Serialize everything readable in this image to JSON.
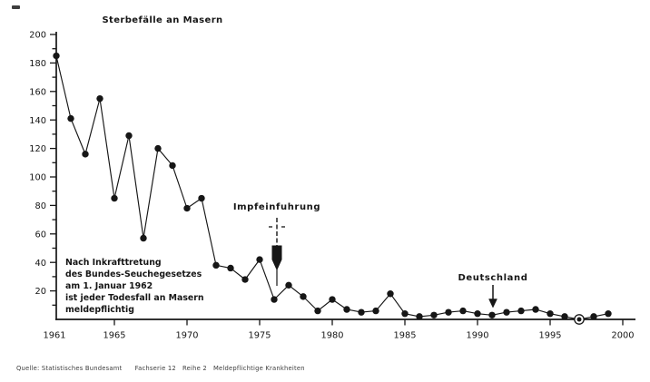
{
  "page": {
    "background": "#ffffff",
    "ink_color": "#161616"
  },
  "chart_data": {
    "type": "line",
    "title": "Sterbefälle an Masern",
    "xlabel": "",
    "ylabel": "",
    "xlim": [
      1961,
      2000
    ],
    "ylim": [
      0,
      200
    ],
    "grid": false,
    "legend": null,
    "marker": "filled-circle",
    "line_color": "#161616",
    "y_major_ticks": [
      20,
      40,
      60,
      80,
      100,
      120,
      140,
      160,
      180,
      200
    ],
    "y_minor_step": 10,
    "x_label_ticks": [
      1961,
      1965,
      1970,
      1975,
      1980,
      1985,
      1990,
      1995,
      2000
    ],
    "x": [
      1961,
      1962,
      1963,
      1964,
      1965,
      1966,
      1967,
      1968,
      1969,
      1970,
      1971,
      1972,
      1973,
      1974,
      1975,
      1976,
      1977,
      1978,
      1979,
      1980,
      1981,
      1982,
      1983,
      1984,
      1985,
      1986,
      1987,
      1988,
      1989,
      1990,
      1991,
      1992,
      1993,
      1994,
      1995,
      1996,
      1997,
      1998,
      1999
    ],
    "values": [
      185,
      141,
      116,
      155,
      85,
      129,
      57,
      120,
      108,
      78,
      85,
      38,
      36,
      28,
      42,
      14,
      24,
      16,
      6,
      14,
      7,
      5,
      6,
      18,
      4,
      2,
      3,
      5,
      6,
      4,
      3,
      5,
      6,
      7,
      4,
      2,
      0,
      2,
      4
    ],
    "special_marker": {
      "x": 1997,
      "value": 0,
      "style": "ring-dot"
    },
    "annotations": [
      {
        "label": "Impfeinfuhrung",
        "x": 1976,
        "arrow": "syringe-down"
      },
      {
        "label": "Deutschland",
        "x": 1991,
        "arrow": "thin-down"
      }
    ],
    "note_lines": [
      "Nach Inkrafttretung",
      "des Bundes-Seuchegesetzes",
      "am 1. Januar 1962",
      "ist jeder Todesfall an Masern",
      "meldepflichtig"
    ],
    "source": "Quelle: Statistisches Bundesamt      Fachserie 12   Reihe 2   Meldepflichtige Krankheiten"
  }
}
